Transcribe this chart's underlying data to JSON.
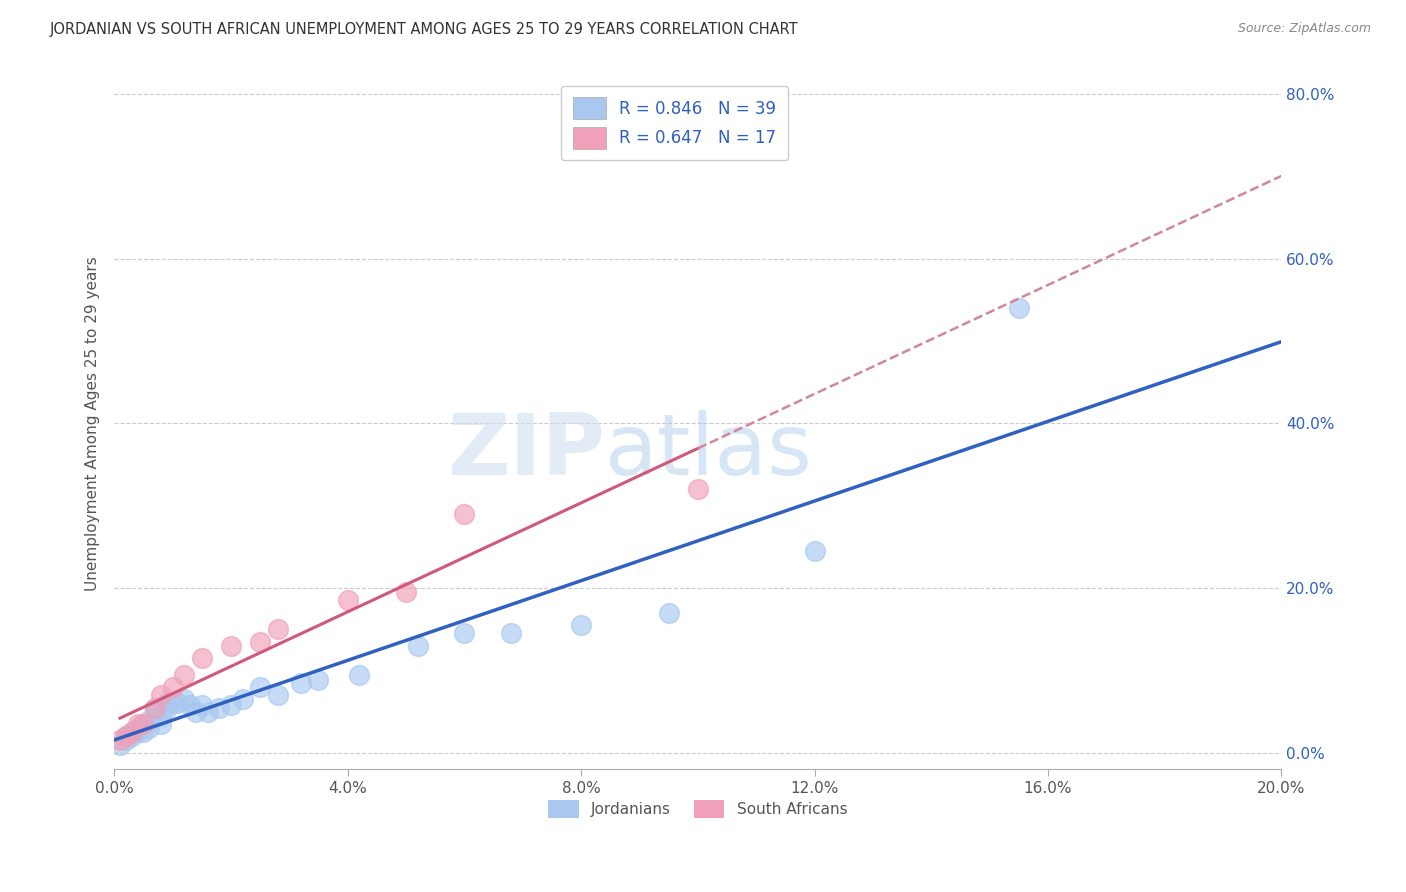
{
  "title": "JORDANIAN VS SOUTH AFRICAN UNEMPLOYMENT AMONG AGES 25 TO 29 YEARS CORRELATION CHART",
  "source": "Source: ZipAtlas.com",
  "ylabel": "Unemployment Among Ages 25 to 29 years",
  "xlim": [
    0,
    0.2
  ],
  "ylim": [
    -0.02,
    0.82
  ],
  "xticks": [
    0.0,
    0.04,
    0.08,
    0.12,
    0.16,
    0.2
  ],
  "yticks": [
    0.0,
    0.2,
    0.4,
    0.6,
    0.8
  ],
  "background_color": "#ffffff",
  "grid_color": "#cccccc",
  "jordanians_color": "#a8c8f0",
  "sa_color": "#f0a0b8",
  "blue_line_color": "#3060c0",
  "pink_line_color": "#d05878",
  "pink_dash_color": "#d08898",
  "legend_label1": "Jordanians",
  "legend_label2": "South Africans",
  "watermark_zip": "ZIP",
  "watermark_atlas": "atlas",
  "jordanians_x": [
    0.001,
    0.002,
    0.002,
    0.003,
    0.003,
    0.004,
    0.004,
    0.005,
    0.005,
    0.006,
    0.006,
    0.007,
    0.007,
    0.008,
    0.008,
    0.009,
    0.009,
    0.01,
    0.011,
    0.012,
    0.013,
    0.014,
    0.015,
    0.016,
    0.018,
    0.02,
    0.022,
    0.025,
    0.028,
    0.032,
    0.035,
    0.042,
    0.052,
    0.06,
    0.068,
    0.08,
    0.095,
    0.12,
    0.155
  ],
  "jordanians_y": [
    0.01,
    0.015,
    0.02,
    0.02,
    0.025,
    0.025,
    0.03,
    0.035,
    0.025,
    0.04,
    0.03,
    0.05,
    0.055,
    0.045,
    0.035,
    0.055,
    0.06,
    0.06,
    0.06,
    0.065,
    0.058,
    0.05,
    0.058,
    0.05,
    0.055,
    0.058,
    0.065,
    0.08,
    0.07,
    0.085,
    0.088,
    0.095,
    0.13,
    0.145,
    0.145,
    0.155,
    0.17,
    0.245,
    0.54
  ],
  "sa_x": [
    0.001,
    0.002,
    0.003,
    0.004,
    0.005,
    0.007,
    0.008,
    0.01,
    0.012,
    0.015,
    0.02,
    0.025,
    0.028,
    0.04,
    0.05,
    0.06,
    0.1
  ],
  "sa_y": [
    0.015,
    0.02,
    0.025,
    0.035,
    0.035,
    0.055,
    0.07,
    0.08,
    0.095,
    0.115,
    0.13,
    0.135,
    0.15,
    0.185,
    0.195,
    0.29,
    0.32
  ]
}
